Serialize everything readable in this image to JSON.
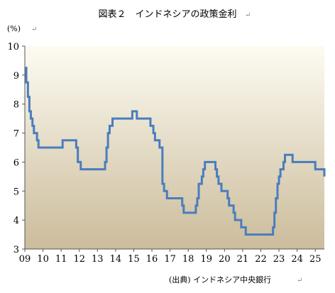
{
  "chart_data": {
    "type": "line",
    "title": "図表２　インドネシアの政策金利",
    "unit_label": "(%)",
    "source": "(出典) インドネシア中央銀行",
    "para_mark": "↵",
    "ylim": [
      3,
      10
    ],
    "y_ticks": [
      "3",
      "4",
      "5",
      "6",
      "7",
      "8",
      "9",
      "10"
    ],
    "xlim": [
      2009,
      2025.5
    ],
    "x_tick_labels": [
      "09",
      "10",
      "11",
      "12",
      "13",
      "14",
      "15",
      "16",
      "17",
      "18",
      "19",
      "20",
      "21",
      "22",
      "23",
      "24",
      "25"
    ],
    "grid": false,
    "background_colors": [
      "#fdfbf2",
      "#cbbc9b"
    ],
    "series": [
      {
        "color": "#4a7dbd",
        "points": [
          [
            2009.0,
            9.25
          ],
          [
            2009.08,
            8.75
          ],
          [
            2009.17,
            8.25
          ],
          [
            2009.25,
            7.75
          ],
          [
            2009.33,
            7.5
          ],
          [
            2009.42,
            7.25
          ],
          [
            2009.5,
            7.0
          ],
          [
            2009.67,
            6.75
          ],
          [
            2009.75,
            6.5
          ],
          [
            2011.08,
            6.75
          ],
          [
            2011.83,
            6.5
          ],
          [
            2011.92,
            6.0
          ],
          [
            2012.08,
            5.75
          ],
          [
            2013.42,
            6.0
          ],
          [
            2013.5,
            6.5
          ],
          [
            2013.58,
            7.0
          ],
          [
            2013.67,
            7.25
          ],
          [
            2013.83,
            7.5
          ],
          [
            2014.92,
            7.75
          ],
          [
            2015.17,
            7.5
          ],
          [
            2015.92,
            7.25
          ],
          [
            2016.08,
            7.0
          ],
          [
            2016.17,
            6.75
          ],
          [
            2016.42,
            6.5
          ],
          [
            2016.58,
            5.25
          ],
          [
            2016.67,
            5.0
          ],
          [
            2016.83,
            4.75
          ],
          [
            2017.67,
            4.5
          ],
          [
            2017.75,
            4.25
          ],
          [
            2018.42,
            4.5
          ],
          [
            2018.5,
            4.75
          ],
          [
            2018.58,
            5.25
          ],
          [
            2018.75,
            5.5
          ],
          [
            2018.83,
            5.75
          ],
          [
            2018.92,
            6.0
          ],
          [
            2019.5,
            5.75
          ],
          [
            2019.58,
            5.5
          ],
          [
            2019.67,
            5.25
          ],
          [
            2019.83,
            5.0
          ],
          [
            2020.17,
            4.75
          ],
          [
            2020.25,
            4.5
          ],
          [
            2020.5,
            4.25
          ],
          [
            2020.58,
            4.0
          ],
          [
            2020.92,
            3.75
          ],
          [
            2021.17,
            3.5
          ],
          [
            2022.67,
            3.75
          ],
          [
            2022.75,
            4.25
          ],
          [
            2022.83,
            4.75
          ],
          [
            2022.92,
            5.25
          ],
          [
            2023.0,
            5.5
          ],
          [
            2023.08,
            5.75
          ],
          [
            2023.25,
            6.0
          ],
          [
            2023.33,
            6.25
          ],
          [
            2023.75,
            6.0
          ],
          [
            2025.0,
            5.75
          ],
          [
            2025.5,
            5.5
          ]
        ]
      }
    ]
  }
}
